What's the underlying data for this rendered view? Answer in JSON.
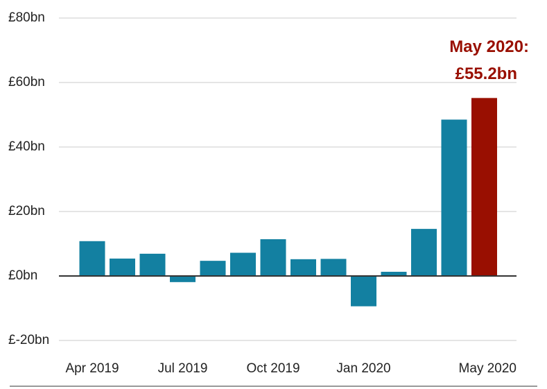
{
  "chart_data": {
    "type": "bar",
    "title": "",
    "xlabel": "",
    "ylabel": "",
    "ylim": [
      -20,
      80
    ],
    "y_ticks": [
      "£-20bn",
      "£0bn",
      "£20bn",
      "£40bn",
      "£60bn",
      "£80bn"
    ],
    "y_tick_values": [
      -20,
      0,
      20,
      40,
      60,
      80
    ],
    "x_ticks": [
      "Apr 2019",
      "Jul 2019",
      "Oct 2019",
      "Jan 2020",
      "May 2020"
    ],
    "categories": [
      "Apr 2019",
      "May 2019",
      "Jun 2019",
      "Jul 2019",
      "Aug 2019",
      "Sep 2019",
      "Oct 2019",
      "Nov 2019",
      "Dec 2019",
      "Jan 2020",
      "Feb 2020",
      "Mar 2020",
      "Apr 2020",
      "May 2020"
    ],
    "values": [
      10.8,
      5.4,
      6.9,
      -1.9,
      4.7,
      7.2,
      11.4,
      5.2,
      5.3,
      -9.4,
      1.3,
      14.6,
      48.5,
      55.2
    ],
    "highlight_index": 13,
    "annotation": {
      "line1": "May 2020:",
      "line2": "£55.2bn"
    },
    "grid": true,
    "colors": {
      "bar": "#1380a1",
      "highlight": "#990f01",
      "grid": "#cbcbcb",
      "zero_line": "#333333",
      "bottom_rule": "#777777",
      "annotation": "#990f01"
    }
  }
}
